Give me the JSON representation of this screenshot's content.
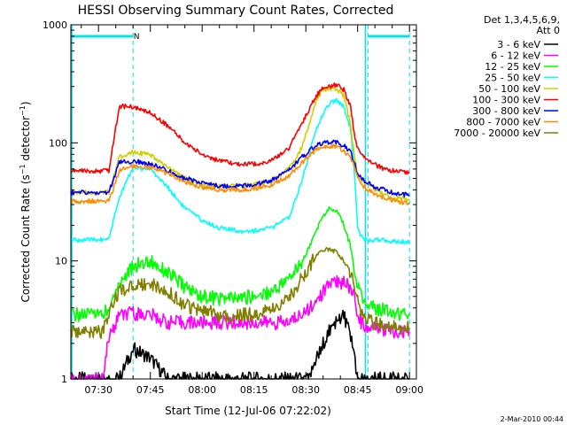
{
  "chart_data": {
    "type": "line",
    "title": "HESSI Observing Summary Count Rates, Corrected",
    "xlabel": "Start Time (12-Jul-06 07:22:02)",
    "ylabel": "Corrected Count Rate (s⁻¹ detector⁻¹)",
    "ylabel_main": "Corrected Count Rate (s",
    "ylabel_mid": " detector",
    "ylabel_end": ")",
    "ylabel_sup": "−1",
    "y_scale": "log",
    "ylim": [
      1,
      1000
    ],
    "yticks": [
      1,
      10,
      100,
      1000
    ],
    "ytick_labels": [
      "1",
      "10",
      "100",
      "1000"
    ],
    "xlim": [
      "07:22",
      "09:02"
    ],
    "xticks": [
      "07:30",
      "07:45",
      "08:00",
      "08:15",
      "08:30",
      "08:45",
      "09:00"
    ],
    "legend_header": [
      "Det 1,3,4,5,6,9,",
      "Att 0"
    ],
    "legend_placement": "right",
    "footer_date": "2-Mar-2010 00:44",
    "annotations": [
      {
        "text": "N",
        "x": "07:41"
      }
    ],
    "night_bars": [
      [
        "07:22",
        "07:40"
      ],
      [
        "08:48",
        "09:00"
      ]
    ],
    "vlines": [
      "07:40",
      "08:48",
      "09:00"
    ],
    "x": [
      "07:22",
      "07:28",
      "07:29",
      "07:31",
      "07:33",
      "07:36",
      "07:40",
      "07:45",
      "07:50",
      "07:55",
      "08:00",
      "08:05",
      "08:10",
      "08:15",
      "08:20",
      "08:25",
      "08:28",
      "08:31",
      "08:33",
      "08:35",
      "08:37",
      "08:39",
      "08:41",
      "08:43",
      "08:44",
      "08:45",
      "08:46",
      "08:48",
      "08:50",
      "08:53",
      "08:56",
      "09:00"
    ],
    "series": [
      {
        "name": "3 - 6 keV",
        "color": "#000000",
        "values": [
          1,
          1,
          1,
          1,
          1,
          1,
          1.8,
          1.5,
          1,
          1,
          1,
          1,
          1,
          1,
          1,
          1,
          1,
          1,
          1.5,
          2,
          2.6,
          3.2,
          3.5,
          2.2,
          1.6,
          1,
          1,
          1,
          1,
          1,
          1,
          1
        ]
      },
      {
        "name": "6 - 12 keV",
        "color": "#ff00ff",
        "values": [
          1,
          1,
          1,
          1,
          2.2,
          3.4,
          3.6,
          3.5,
          3,
          3,
          3,
          3,
          3,
          3,
          3,
          3,
          3.5,
          4,
          4.6,
          5.4,
          6.5,
          6.8,
          6.5,
          6,
          5.5,
          3.5,
          3,
          2.8,
          2.8,
          2.6,
          2.5,
          2.5
        ]
      },
      {
        "name": "12 - 25 keV",
        "color": "#00ff00",
        "values": [
          3.5,
          3.5,
          3.5,
          3.5,
          4,
          6.5,
          9,
          10,
          8,
          6,
          5,
          4.8,
          4.8,
          5,
          5.5,
          7,
          9,
          13,
          18,
          24,
          28,
          27,
          20,
          13,
          9,
          6,
          5,
          4.5,
          4,
          3.8,
          3.6,
          3.6
        ]
      },
      {
        "name": "25 - 50 keV",
        "color": "#00ffff",
        "values": [
          15,
          15,
          15,
          15,
          15,
          35,
          62,
          60,
          42,
          28,
          22,
          19,
          18,
          18,
          19,
          23,
          40,
          80,
          130,
          180,
          220,
          230,
          200,
          130,
          60,
          20,
          16,
          15,
          15,
          15,
          14.5,
          14.5
        ]
      },
      {
        "name": "50 - 100 keV",
        "color": "#d0d000",
        "values": [
          38,
          38,
          38,
          38,
          38,
          75,
          85,
          78,
          62,
          50,
          44,
          43,
          43,
          44,
          48,
          60,
          80,
          140,
          230,
          280,
          290,
          280,
          250,
          140,
          80,
          52,
          48,
          44,
          40,
          36,
          34,
          33
        ]
      },
      {
        "name": "100 - 300 keV",
        "color": "#ff0000",
        "values": [
          58,
          58,
          58,
          58,
          58,
          205,
          200,
          180,
          140,
          100,
          80,
          70,
          66,
          66,
          70,
          90,
          130,
          190,
          250,
          290,
          300,
          310,
          280,
          200,
          120,
          90,
          80,
          72,
          65,
          60,
          57,
          56
        ]
      },
      {
        "name": "300 - 800 keV",
        "color": "#0000ff",
        "values": [
          38,
          38,
          38,
          38,
          38,
          68,
          70,
          66,
          58,
          50,
          46,
          43,
          43,
          44,
          48,
          58,
          72,
          85,
          95,
          100,
          102,
          100,
          95,
          82,
          68,
          55,
          50,
          46,
          42,
          40,
          37,
          36
        ]
      },
      {
        "name": "800 - 7000 keV",
        "color": "#ff8c00",
        "values": [
          32,
          32,
          32,
          32,
          32,
          58,
          64,
          62,
          55,
          47,
          42,
          40,
          40,
          41,
          44,
          52,
          64,
          78,
          88,
          93,
          94,
          92,
          86,
          74,
          62,
          50,
          44,
          40,
          37,
          34,
          32,
          31
        ]
      },
      {
        "name": "7000 - 20000 keV",
        "color": "#808000",
        "values": [
          2.5,
          2.5,
          2.5,
          2.5,
          3.5,
          5.5,
          6.2,
          6.5,
          5.5,
          4.2,
          3.8,
          3.5,
          3.5,
          3.5,
          3.8,
          4.8,
          6.5,
          9,
          11,
          12.5,
          12.5,
          12,
          10,
          8,
          6,
          4.5,
          3.8,
          3.2,
          3,
          2.8,
          2.7,
          2.7
        ]
      }
    ]
  }
}
